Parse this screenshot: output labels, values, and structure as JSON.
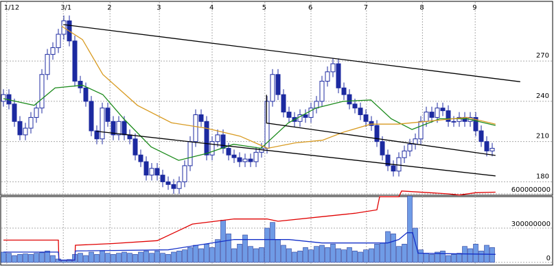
{
  "chart_data": {
    "type": "candlestick",
    "xlim": [
      0,
      96
    ],
    "xticks": [
      {
        "value": 0.6,
        "label": "1/12"
      },
      {
        "value": 10.9,
        "label": "3/1"
      },
      {
        "value": 19.4,
        "label": "2"
      },
      {
        "value": 28.4,
        "label": "3"
      },
      {
        "value": 38,
        "label": "4"
      },
      {
        "value": 47.6,
        "label": "5"
      },
      {
        "value": 56,
        "label": "6"
      },
      {
        "value": 66.1,
        "label": "7"
      },
      {
        "value": 76.3,
        "label": "8"
      },
      {
        "value": 85.9,
        "label": "9"
      }
    ],
    "ylim": [
      170,
      314
    ],
    "yticks": [
      180,
      210,
      240,
      270
    ],
    "grid": true,
    "up_color": "#ffffff",
    "down_color": "#1c2aa0",
    "open": [
      240,
      245,
      238,
      225,
      215,
      220,
      228,
      235,
      260,
      275,
      280,
      290,
      300,
      285,
      255,
      250,
      240,
      218,
      212,
      235,
      225,
      215,
      225,
      215,
      212,
      200,
      195,
      185,
      190,
      185,
      180,
      178,
      175,
      180,
      192,
      210,
      230,
      225,
      200,
      210,
      215,
      205,
      200,
      198,
      195,
      197,
      195,
      202,
      205,
      240,
      260,
      245,
      232,
      228,
      225,
      230,
      228,
      235,
      240,
      255,
      262,
      268,
      250,
      245,
      238,
      235,
      230,
      225,
      222,
      210,
      200,
      192,
      188,
      198,
      203,
      208,
      212,
      225,
      232,
      228,
      235,
      233,
      225,
      225,
      228,
      225,
      228,
      218,
      210,
      203
    ],
    "high": [
      249,
      249,
      242,
      229,
      224,
      232,
      239,
      264,
      279,
      284,
      294,
      304,
      304,
      289,
      259,
      254,
      244,
      222,
      239,
      239,
      229,
      229,
      229,
      219,
      216,
      204,
      199,
      194,
      194,
      189,
      184,
      182,
      184,
      196,
      214,
      234,
      234,
      229,
      214,
      219,
      219,
      209,
      204,
      202,
      201,
      201,
      206,
      209,
      244,
      264,
      264,
      249,
      236,
      232,
      234,
      234,
      239,
      244,
      259,
      266,
      272,
      272,
      254,
      249,
      242,
      239,
      234,
      229,
      226,
      214,
      204,
      196,
      202,
      207,
      212,
      216,
      229,
      236,
      236,
      239,
      239,
      237,
      229,
      232,
      232,
      232,
      232,
      222,
      214,
      209
    ],
    "low": [
      236,
      234,
      221,
      211,
      211,
      216,
      224,
      231,
      256,
      271,
      276,
      286,
      281,
      251,
      246,
      236,
      214,
      208,
      208,
      221,
      211,
      211,
      211,
      208,
      196,
      191,
      181,
      181,
      181,
      176,
      174,
      171,
      171,
      176,
      188,
      206,
      221,
      196,
      196,
      206,
      201,
      196,
      194,
      191,
      191,
      191,
      191,
      198,
      201,
      236,
      241,
      228,
      224,
      221,
      221,
      224,
      224,
      231,
      236,
      251,
      258,
      246,
      241,
      234,
      231,
      226,
      221,
      218,
      206,
      196,
      188,
      184,
      184,
      194,
      199,
      204,
      208,
      221,
      224,
      224,
      229,
      221,
      221,
      221,
      221,
      221,
      214,
      206,
      199,
      199
    ],
    "close": [
      245,
      238,
      225,
      215,
      220,
      228,
      235,
      260,
      275,
      280,
      290,
      300,
      285,
      255,
      250,
      240,
      218,
      212,
      235,
      225,
      215,
      225,
      215,
      212,
      200,
      195,
      185,
      190,
      185,
      180,
      178,
      175,
      180,
      192,
      210,
      230,
      225,
      200,
      210,
      215,
      205,
      200,
      198,
      195,
      197,
      195,
      202,
      205,
      240,
      260,
      245,
      232,
      228,
      225,
      230,
      228,
      235,
      240,
      255,
      262,
      268,
      250,
      245,
      238,
      235,
      230,
      225,
      222,
      210,
      200,
      192,
      188,
      198,
      203,
      208,
      212,
      225,
      232,
      228,
      235,
      233,
      225,
      225,
      228,
      225,
      228,
      218,
      210,
      203,
      205
    ],
    "lines": [
      {
        "color": "#1a8a1a",
        "x": [
          0,
          5.6,
          9.4,
          14.4,
          18.1,
          21.9,
          26.9,
          31.9,
          36.9,
          41.9,
          46.9,
          51.9,
          56.9,
          61.9,
          66.9,
          70.6,
          74.4,
          79.4,
          84.4,
          89.6
        ],
        "values": [
          242,
          237,
          250,
          252,
          245,
          227,
          206,
          196,
          201,
          208,
          205,
          224,
          235,
          240,
          241,
          227,
          219,
          227,
          227,
          222
        ]
      },
      {
        "color": "#d89a20",
        "x": [
          10.6,
          14.4,
          18.1,
          24.4,
          30.6,
          36.9,
          43.1,
          48.1,
          53.1,
          58.1,
          61.9,
          66.9,
          71.9,
          76.9,
          84.4,
          89.6
        ],
        "values": [
          296,
          286,
          260,
          237,
          224,
          220,
          214,
          205,
          209,
          211,
          217,
          223,
          223,
          225,
          228,
          223
        ]
      },
      {
        "color": "#000000",
        "x": [
          10.9,
          94.1
        ],
        "values": [
          297.2,
          254.6
        ]
      },
      {
        "color": "#000000",
        "x": [
          16.9,
          89.6
        ],
        "values": [
          217.7,
          184.4
        ]
      },
      {
        "color": "#000000",
        "x": [
          47.9,
          47.9,
          89.6
        ],
        "values": [
          244.9,
          223.8,
          199.7
        ]
      }
    ],
    "volume": {
      "color": "#6f9be6",
      "ylim": [
        0,
        630000000
      ],
      "yticks": [
        0,
        300000000,
        600000000
      ],
      "values": [
        90000000,
        80000000,
        60000000,
        70000000,
        75000000,
        70000000,
        80000000,
        85000000,
        100000000,
        60000000,
        30000000,
        20000000,
        25000000,
        70000000,
        80000000,
        60000000,
        90000000,
        70000000,
        100000000,
        80000000,
        70000000,
        80000000,
        90000000,
        80000000,
        70000000,
        90000000,
        100000000,
        80000000,
        100000000,
        80000000,
        70000000,
        90000000,
        100000000,
        110000000,
        130000000,
        150000000,
        120000000,
        160000000,
        130000000,
        200000000,
        370000000,
        250000000,
        120000000,
        160000000,
        240000000,
        140000000,
        120000000,
        130000000,
        300000000,
        350000000,
        200000000,
        150000000,
        120000000,
        90000000,
        100000000,
        130000000,
        110000000,
        140000000,
        150000000,
        130000000,
        160000000,
        120000000,
        110000000,
        130000000,
        100000000,
        90000000,
        110000000,
        120000000,
        160000000,
        170000000,
        270000000,
        250000000,
        140000000,
        160000000,
        580000000,
        300000000,
        110000000,
        80000000,
        70000000,
        90000000,
        100000000,
        60000000,
        70000000,
        80000000,
        140000000,
        120000000,
        160000000,
        100000000,
        150000000,
        130000000
      ],
      "lines": [
        {
          "color": "#e00000",
          "x": [
            0,
            10,
            10.1,
            13,
            13.1,
            20,
            28,
            34.4,
            42,
            48,
            50,
            58,
            64,
            68,
            68.5,
            72,
            72.5,
            81,
            83,
            86,
            89.6
          ],
          "values": [
            195000000,
            195000000,
            20000000,
            20000000,
            150000000,
            165000000,
            190000000,
            335000000,
            380000000,
            380000000,
            360000000,
            400000000,
            430000000,
            460000000,
            575000000,
            575000000,
            625000000,
            600000000,
            590000000,
            610000000,
            615000000
          ]
        },
        {
          "color": "#1430c8",
          "x": [
            0,
            10,
            10.1,
            13,
            13.1,
            30,
            42,
            52,
            58,
            70,
            72,
            73.5,
            74.5,
            75.5,
            89.6
          ],
          "values": [
            90000000,
            90000000,
            20000000,
            20000000,
            100000000,
            110000000,
            200000000,
            200000000,
            170000000,
            170000000,
            200000000,
            260000000,
            260000000,
            80000000,
            70000000
          ]
        }
      ]
    }
  }
}
